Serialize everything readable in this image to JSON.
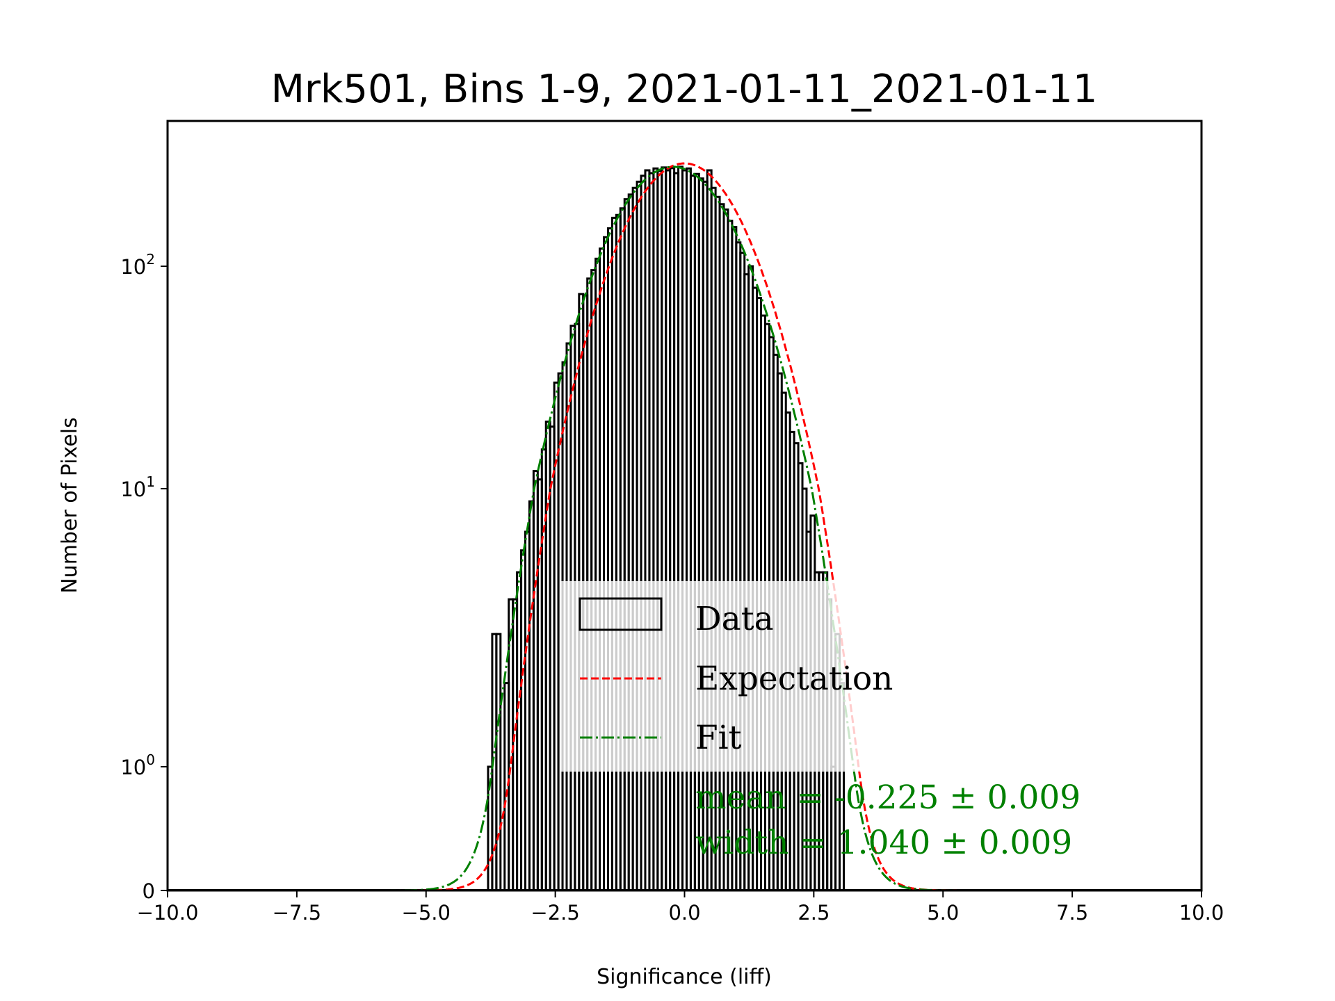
{
  "chart_data": {
    "type": "bar",
    "title": "Mrk501, Bins 1-9, 2021-01-11_2021-01-11",
    "xlabel": "Significance (liff)",
    "ylabel": "Number of Pixels",
    "xlim": [
      -10.0,
      10.0
    ],
    "ylim": [
      0,
      420
    ],
    "yscale": "symlog",
    "xticks": [
      -10.0,
      -7.5,
      -5.0,
      -2.5,
      0.0,
      2.5,
      5.0,
      7.5,
      10.0
    ],
    "xtick_labels": [
      "−10.0",
      "−7.5",
      "−5.0",
      "−2.5",
      "0.0",
      "2.5",
      "5.0",
      "7.5",
      "10.0"
    ],
    "yticks": [
      {
        "value": 0,
        "base": "0",
        "exp": ""
      },
      {
        "value": 1,
        "base": "10",
        "exp": "0"
      },
      {
        "value": 10,
        "base": "10",
        "exp": "1"
      },
      {
        "value": 100,
        "base": "10",
        "exp": "2"
      }
    ],
    "grid": false,
    "histogram": {
      "name": "Data",
      "color": "#000000",
      "bin_width": 0.08,
      "bin_start": -3.8,
      "counts": [
        1,
        3,
        3,
        0,
        2,
        4,
        4,
        5,
        6,
        7,
        9,
        12,
        11,
        15,
        20,
        19,
        30,
        33,
        37,
        45,
        54,
        55,
        75,
        74,
        88,
        96,
        108,
        120,
        135,
        148,
        165,
        170,
        182,
        200,
        210,
        225,
        240,
        255,
        270,
        262,
        275,
        268,
        278,
        270,
        276,
        262,
        280,
        270,
        275,
        255,
        260,
        248,
        240,
        270,
        225,
        205,
        190,
        180,
        160,
        150,
        128,
        115,
        92,
        100,
        80,
        72,
        60,
        55,
        48,
        40,
        33,
        27,
        22,
        18,
        16,
        13,
        10,
        7,
        8,
        5,
        5,
        5,
        4,
        1,
        3,
        2,
        0
      ]
    },
    "series": [
      {
        "name": "Expectation",
        "type": "gaussian",
        "mean": 0.0,
        "width": 1.0,
        "amplitude": 290,
        "color": "#ff0000",
        "style": "dashed"
      },
      {
        "name": "Fit",
        "type": "gaussian",
        "mean": -0.225,
        "width": 1.04,
        "amplitude": 280,
        "color": "#008000",
        "style": "dashdot"
      }
    ],
    "legend": {
      "placement": "lower-center",
      "entries": [
        "Data",
        "Expectation",
        "Fit"
      ]
    },
    "annotations": [
      {
        "text": "mean = -0.225 ± 0.009",
        "color": "#008000"
      },
      {
        "text": "width = 1.040 ± 0.009",
        "color": "#008000"
      }
    ]
  }
}
